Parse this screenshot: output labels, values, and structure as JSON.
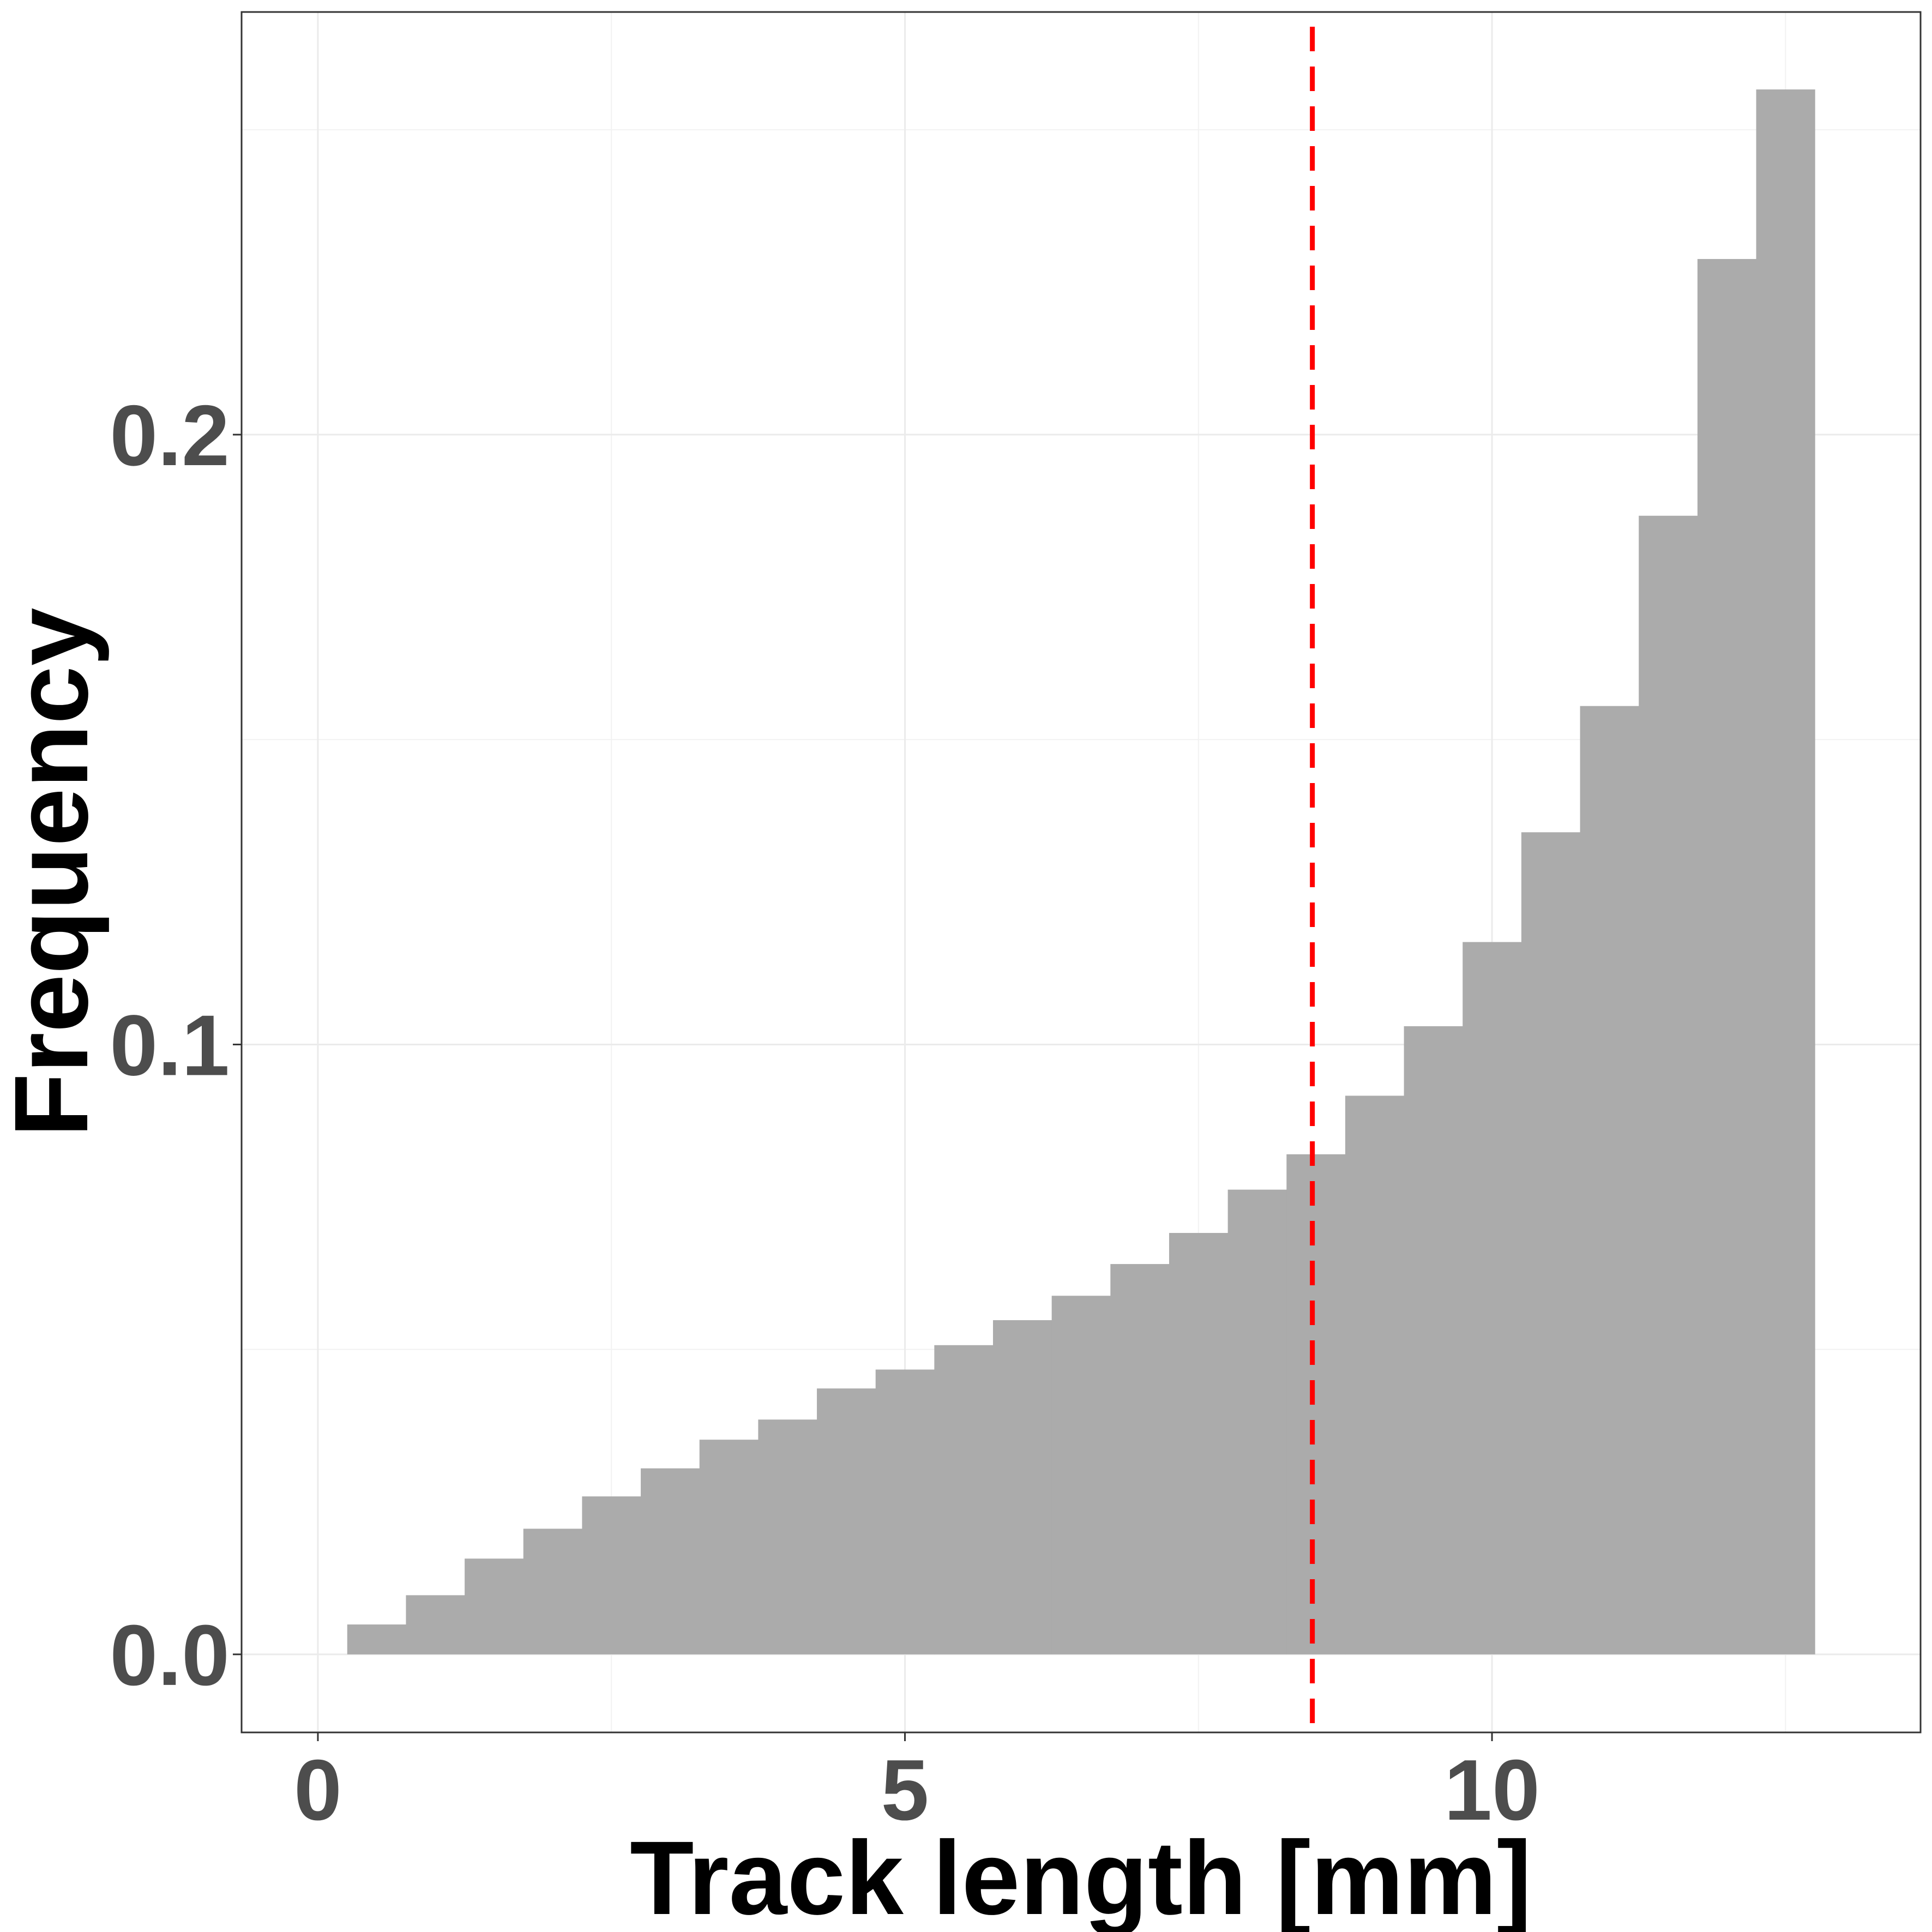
{
  "chart_data": {
    "type": "bar",
    "subtype": "histogram",
    "title": "",
    "xlabel": "Track length [mm]",
    "ylabel": "Frequency",
    "xlim": [
      -0.65,
      13.65
    ],
    "ylim": [
      -0.0128,
      0.2693
    ],
    "x_ticks": [
      0,
      5,
      10
    ],
    "x_tick_labels": [
      "0",
      "5",
      "10"
    ],
    "y_ticks": [
      0.0,
      0.1,
      0.2
    ],
    "y_tick_labels": [
      "0.0",
      "0.1",
      "0.2"
    ],
    "grid": true,
    "bar_color": "#ababab",
    "bins": [
      {
        "x0": 0.25,
        "x1": 0.75,
        "value": 0.0049
      },
      {
        "x0": 0.75,
        "x1": 1.25,
        "value": 0.0097
      },
      {
        "x0": 1.25,
        "x1": 1.75,
        "value": 0.0157
      },
      {
        "x0": 1.75,
        "x1": 2.25,
        "value": 0.0206
      },
      {
        "x0": 2.25,
        "x1": 2.75,
        "value": 0.0259
      },
      {
        "x0": 2.75,
        "x1": 3.25,
        "value": 0.0305
      },
      {
        "x0": 3.25,
        "x1": 3.75,
        "value": 0.0352
      },
      {
        "x0": 3.75,
        "x1": 4.25,
        "value": 0.0385
      },
      {
        "x0": 4.25,
        "x1": 4.75,
        "value": 0.0436
      },
      {
        "x0": 4.75,
        "x1": 5.25,
        "value": 0.0467
      },
      {
        "x0": 5.25,
        "x1": 5.75,
        "value": 0.0507
      },
      {
        "x0": 5.75,
        "x1": 6.25,
        "value": 0.0548
      },
      {
        "x0": 6.25,
        "x1": 6.75,
        "value": 0.0588
      },
      {
        "x0": 6.75,
        "x1": 7.25,
        "value": 0.064
      },
      {
        "x0": 7.25,
        "x1": 7.75,
        "value": 0.0691
      },
      {
        "x0": 7.75,
        "x1": 8.25,
        "value": 0.0762
      },
      {
        "x0": 8.25,
        "x1": 8.75,
        "value": 0.082
      },
      {
        "x0": 8.75,
        "x1": 9.25,
        "value": 0.0916
      },
      {
        "x0": 9.25,
        "x1": 9.75,
        "value": 0.103
      },
      {
        "x0": 9.75,
        "x1": 10.25,
        "value": 0.1168
      },
      {
        "x0": 10.25,
        "x1": 10.75,
        "value": 0.1348
      },
      {
        "x0": 10.75,
        "x1": 11.25,
        "value": 0.1555
      },
      {
        "x0": 11.25,
        "x1": 11.75,
        "value": 0.1867
      },
      {
        "x0": 11.75,
        "x1": 12.25,
        "value": 0.2288
      },
      {
        "x0": 12.25,
        "x1": 12.75,
        "value": 0.2566
      }
    ],
    "reference_line": {
      "x": 8.47,
      "color": "#ff0000",
      "style": "dashed"
    }
  }
}
